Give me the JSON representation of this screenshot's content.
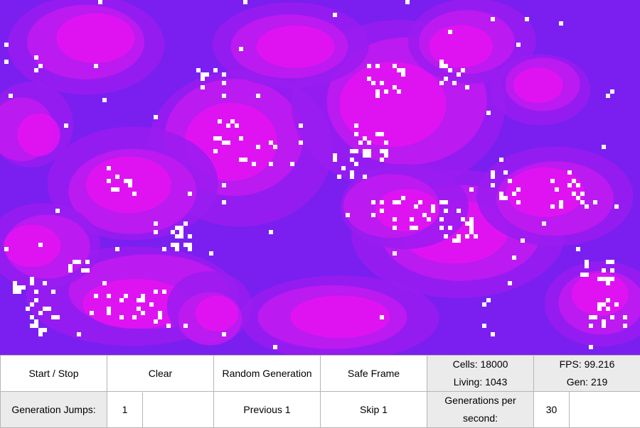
{
  "board": {
    "colors": {
      "background": "#7a1ff0",
      "trail_light": "#e513f2",
      "trail_mid": "#c21af0",
      "trail_dark": "#9a1cf0",
      "live_cell": "#ffffff"
    }
  },
  "controls": {
    "start_stop": "Start / Stop",
    "clear": "Clear",
    "random_generation": "Random Generation",
    "safe_frame": "Safe Frame",
    "cells": "Cells: 18000",
    "living": "Living: 1043",
    "fps": "FPS: 99.216",
    "gen": "Gen: 219",
    "generation_jumps_label": "Generation Jumps:",
    "generation_jumps_value": "1",
    "previous": "Previous 1",
    "skip": "Skip 1",
    "gens_per_second_line1": "Generations per",
    "gens_per_second_line2": "second:",
    "gens_per_second_value": "30"
  }
}
